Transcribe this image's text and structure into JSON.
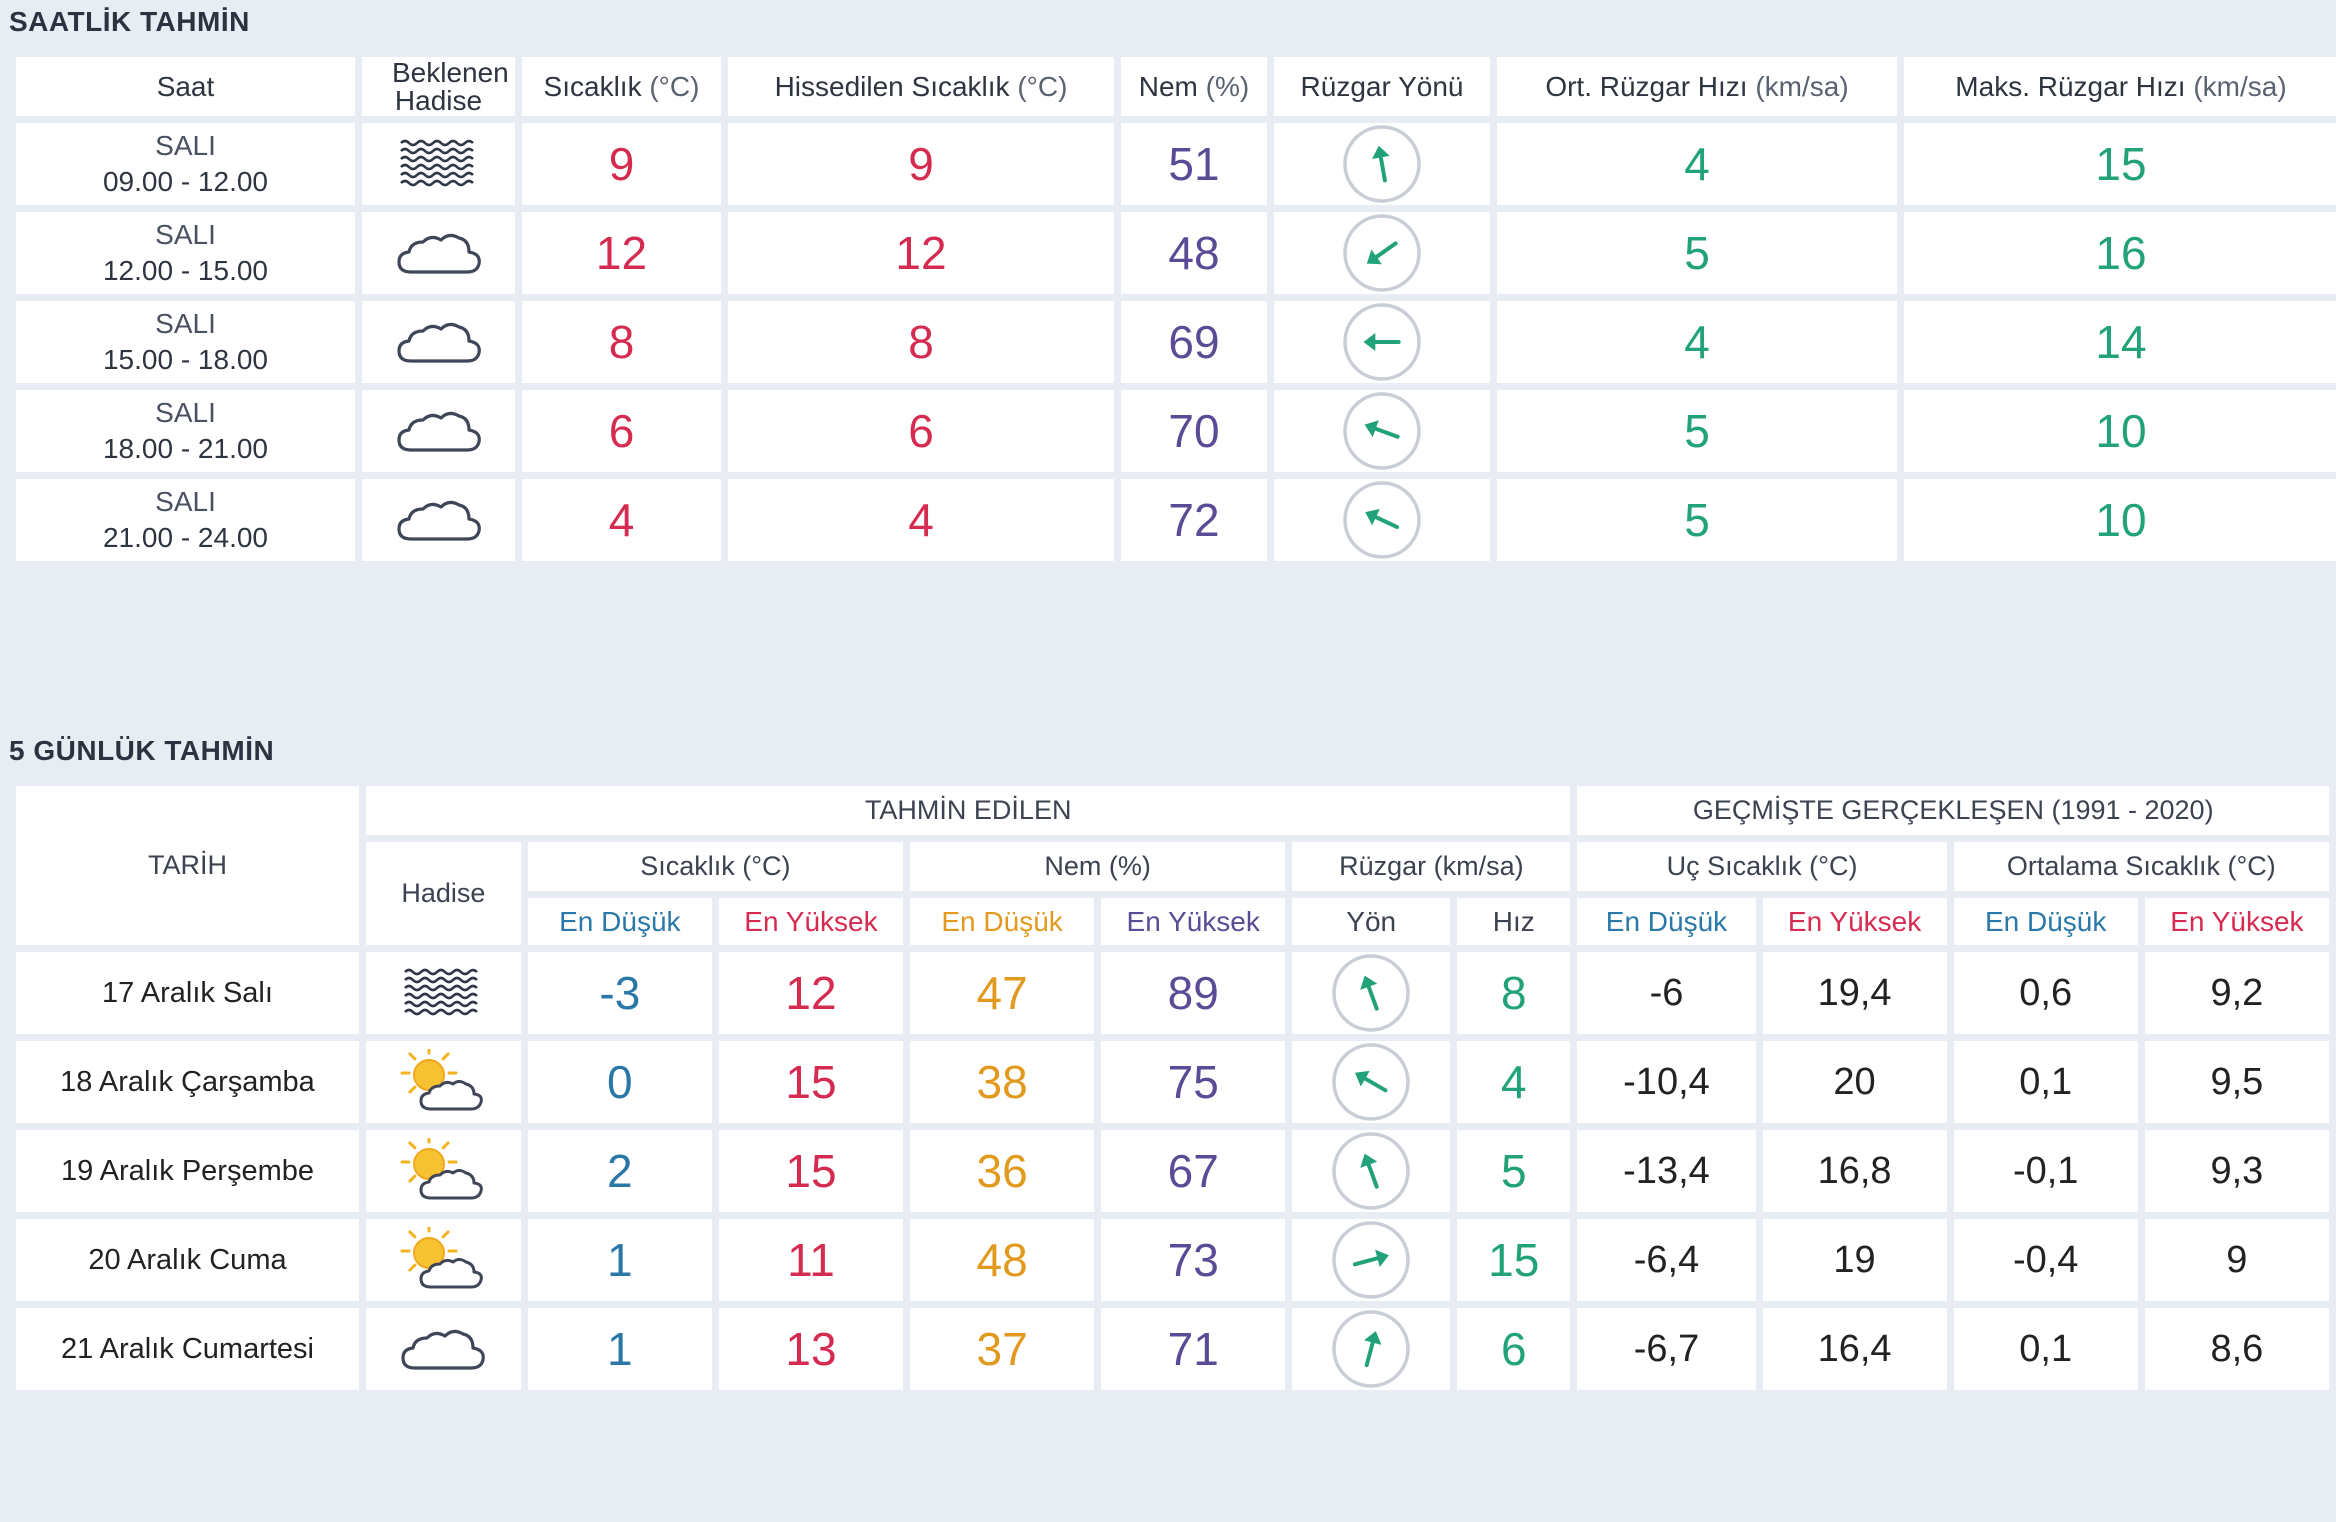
{
  "hourly": {
    "title": "SAATLİK TAHMİN",
    "headers": {
      "saat": "Saat",
      "hadise": "Beklenen Hadise",
      "sicaklik": "Sıcaklık",
      "sicaklik_unit": "(°C)",
      "hissedilen": "Hissedilen Sıcaklık",
      "hissedilen_unit": "(°C)",
      "nem": "Nem",
      "nem_unit": "(%)",
      "yon": "Rüzgar Yönü",
      "ort": "Ort. Rüzgar Hızı",
      "ort_unit": "(km/sa)",
      "maks": "Maks. Rüzgar Hızı",
      "maks_unit": "(km/sa)"
    },
    "rows": [
      {
        "day": "SALI",
        "time": "09.00 - 12.00",
        "icon": "fog-icon",
        "temp": "9",
        "feels": "9",
        "hum": "51",
        "wind_dir_deg": 170,
        "avg": "4",
        "max": "15"
      },
      {
        "day": "SALI",
        "time": "12.00 - 15.00",
        "icon": "cloud-icon",
        "temp": "12",
        "feels": "12",
        "hum": "48",
        "wind_dir_deg": 55,
        "avg": "5",
        "max": "16"
      },
      {
        "day": "SALI",
        "time": "15.00 - 18.00",
        "icon": "cloud-icon",
        "temp": "8",
        "feels": "8",
        "hum": "69",
        "wind_dir_deg": 90,
        "avg": "4",
        "max": "14"
      },
      {
        "day": "SALI",
        "time": "18.00 - 21.00",
        "icon": "cloud-icon",
        "temp": "6",
        "feels": "6",
        "hum": "70",
        "wind_dir_deg": 110,
        "avg": "5",
        "max": "10"
      },
      {
        "day": "SALI",
        "time": "21.00 - 24.00",
        "icon": "cloud-icon",
        "temp": "4",
        "feels": "4",
        "hum": "72",
        "wind_dir_deg": 115,
        "avg": "5",
        "max": "10"
      }
    ]
  },
  "daily": {
    "title": "5 GÜNLÜK TAHMİN",
    "headers": {
      "tarih": "TARİH",
      "tahmin": "TAHMİN EDİLEN",
      "gecmis": "GEÇMİŞTE GERÇEKLEŞEN (1991 - 2020)",
      "hadise": "Hadise",
      "sicaklik": "Sıcaklık (°C)",
      "nem": "Nem (%)",
      "ruzgar": "Rüzgar (km/sa)",
      "uc": "Uç Sıcaklık (°C)",
      "ortalama": "Ortalama Sıcaklık (°C)",
      "en_dusuk": "En Düşük",
      "en_yuksek": "En Yüksek",
      "yon": "Yön",
      "hiz": "Hız"
    },
    "rows": [
      {
        "date": "17 Aralık Salı",
        "icon": "fog-icon",
        "tmin": "-3",
        "tmax": "12",
        "hmin": "47",
        "hmax": "89",
        "wind_dir_deg": 160,
        "wind": "8",
        "umin": "-6",
        "umax": "19,4",
        "omin": "0,6",
        "omax": "9,2"
      },
      {
        "date": "18 Aralık Çarşamba",
        "icon": "sun-cloud-icon",
        "tmin": "0",
        "tmax": "15",
        "hmin": "38",
        "hmax": "75",
        "wind_dir_deg": 120,
        "wind": "4",
        "umin": "-10,4",
        "umax": "20",
        "omin": "0,1",
        "omax": "9,5"
      },
      {
        "date": "19 Aralık Perşembe",
        "icon": "sun-cloud-small-icon",
        "tmin": "2",
        "tmax": "15",
        "hmin": "36",
        "hmax": "67",
        "wind_dir_deg": 160,
        "wind": "5",
        "umin": "-13,4",
        "umax": "16,8",
        "omin": "-0,1",
        "omax": "9,3"
      },
      {
        "date": "20 Aralık Cuma",
        "icon": "sun-cloud-small-icon",
        "tmin": "1",
        "tmax": "11",
        "hmin": "48",
        "hmax": "73",
        "wind_dir_deg": 255,
        "wind": "15",
        "umin": "-6,4",
        "umax": "19",
        "omin": "-0,4",
        "omax": "9"
      },
      {
        "date": "21 Aralık Cumartesi",
        "icon": "cloud-icon",
        "tmin": "1",
        "tmax": "13",
        "hmin": "37",
        "hmax": "71",
        "wind_dir_deg": 195,
        "wind": "6",
        "umin": "-6,7",
        "umax": "16,4",
        "omin": "0,1",
        "omax": "8,6"
      }
    ]
  },
  "colors": {
    "temp": "#d62b50",
    "humidity": "#5b4b96",
    "wind": "#22a27a",
    "min": "#2a78a8",
    "orange": "#e29a1e"
  }
}
